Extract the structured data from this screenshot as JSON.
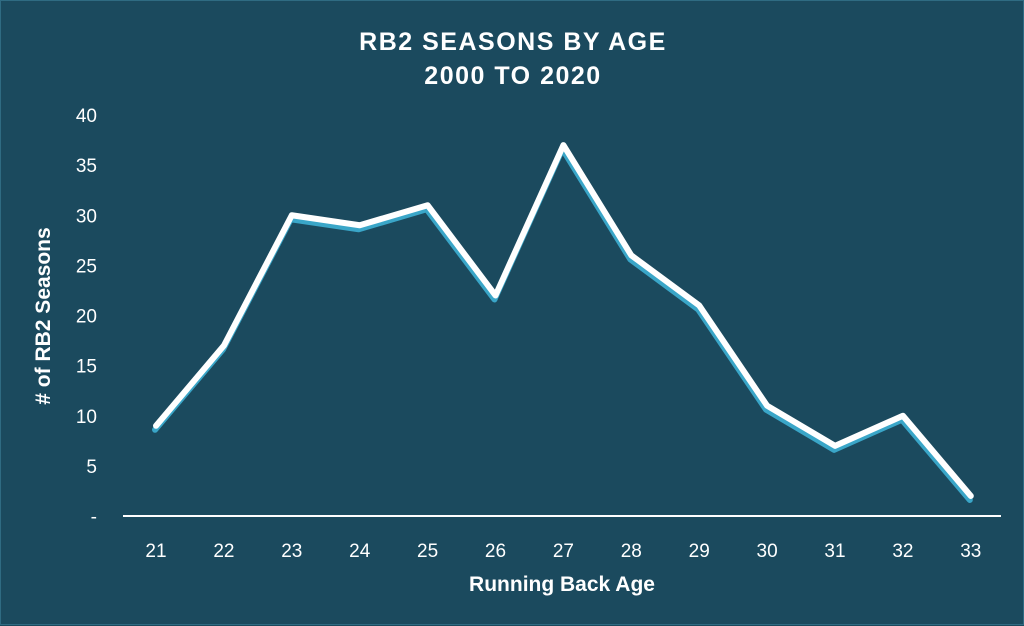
{
  "chart_data": {
    "type": "line",
    "title": "RB2 SEASONS BY AGE",
    "subtitle": "2000 TO 2020",
    "xlabel": "Running Back Age",
    "ylabel": "# of RB2 Seasons",
    "x": [
      21,
      22,
      23,
      24,
      25,
      26,
      27,
      28,
      29,
      30,
      31,
      32,
      33
    ],
    "series": [
      {
        "values": [
          9,
          17,
          30,
          29,
          31,
          22,
          37,
          26,
          21,
          11,
          7,
          10,
          2
        ]
      }
    ],
    "ylim": [
      0,
      40
    ],
    "yticks": [
      "-",
      "5",
      "10",
      "15",
      "20",
      "25",
      "30",
      "35",
      "40"
    ],
    "xticks": [
      "21",
      "22",
      "23",
      "24",
      "25",
      "26",
      "27",
      "28",
      "29",
      "30",
      "31",
      "32",
      "33"
    ],
    "grid": false,
    "drop_lines": true,
    "colors": {
      "background": "#1b4a5e",
      "line": "#ffffff",
      "line_shadow": "#3aa6c8",
      "axis": "#ffffff"
    }
  }
}
